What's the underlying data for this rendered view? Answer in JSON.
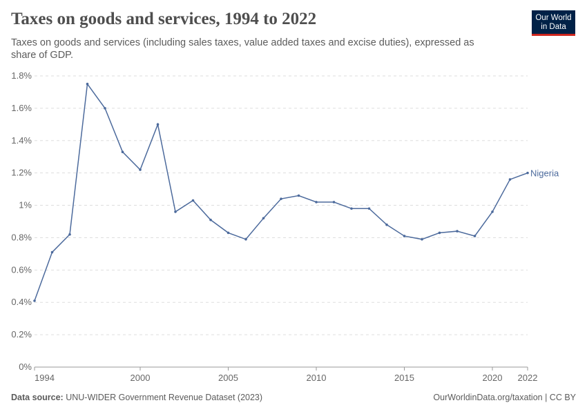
{
  "header": {
    "title": "Taxes on goods and services, 1994 to 2022",
    "subtitle": "Taxes on goods and services (including sales taxes, value added taxes and excise duties), expressed as share of GDP.",
    "logo": "Our World in Data"
  },
  "footer": {
    "source_label": "Data source:",
    "source": "UNU-WIDER Government Revenue Dataset (2023)",
    "link": "OurWorldinData.org/taxation | CC BY"
  },
  "chart_data": {
    "type": "line",
    "title": "Taxes on goods and services, 1994 to 2022",
    "xlim": [
      1994,
      2022
    ],
    "ylim": [
      0,
      1.8
    ],
    "x_ticks": [
      "1994",
      "2000",
      "2005",
      "2010",
      "2015",
      "2020",
      "2022"
    ],
    "y_ticks": [
      "0%",
      "0.2%",
      "0.4%",
      "0.6%",
      "0.8%",
      "1%",
      "1.2%",
      "1.4%",
      "1.6%",
      "1.8%"
    ],
    "grid": "horizontal dashed",
    "series_color": "#4c6a9c",
    "series": [
      {
        "name": "Nigeria",
        "x": [
          1994,
          1995,
          1996,
          1997,
          1998,
          1999,
          2000,
          2001,
          2002,
          2003,
          2004,
          2005,
          2006,
          2007,
          2008,
          2009,
          2010,
          2011,
          2012,
          2013,
          2014,
          2015,
          2016,
          2017,
          2018,
          2019,
          2020,
          2021,
          2022
        ],
        "values": [
          0.41,
          0.71,
          0.82,
          1.75,
          1.6,
          1.33,
          1.22,
          1.5,
          0.96,
          1.03,
          0.91,
          0.83,
          0.79,
          0.92,
          1.04,
          1.06,
          1.02,
          1.02,
          0.98,
          0.98,
          0.88,
          0.81,
          0.79,
          0.83,
          0.84,
          0.81,
          0.96,
          1.16,
          1.2
        ]
      }
    ]
  }
}
